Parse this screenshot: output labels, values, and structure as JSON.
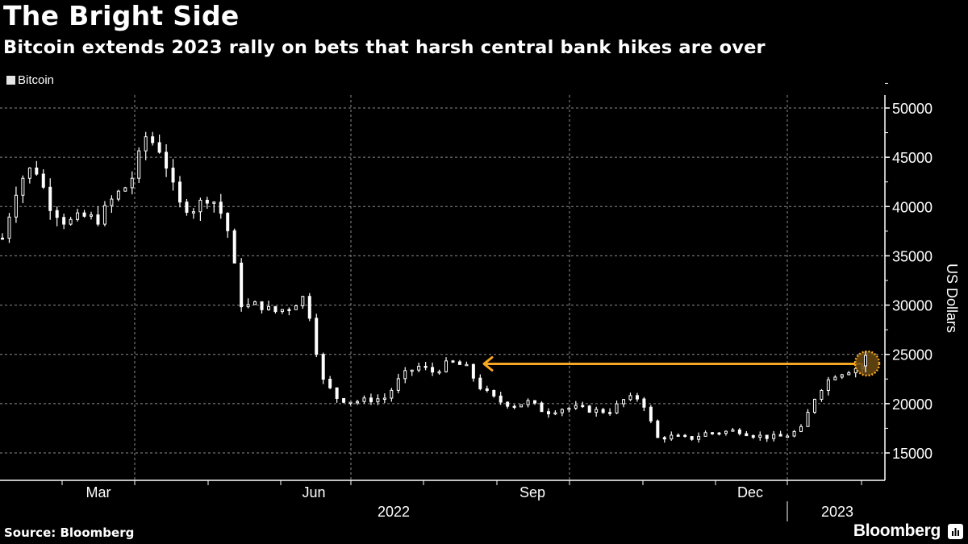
{
  "header": {
    "title": "The Bright Side",
    "subtitle": "Bitcoin extends 2023 rally on bets that harsh central bank hikes are over"
  },
  "legend": {
    "items": [
      {
        "label": "Bitcoin",
        "color": "#e6e6e6"
      }
    ]
  },
  "footer": {
    "source": "Source: Bloomberg",
    "brand": "Bloomberg"
  },
  "colors": {
    "background": "#000000",
    "series": "#ffffff",
    "annotation": "#f5a623",
    "grid": "#8c8c8c"
  },
  "chart_data": {
    "type": "line",
    "subtype": "candlestick",
    "title": "The Bright Side",
    "subtitle": "Bitcoin extends 2023 rally on bets that harsh central bank hikes are over",
    "xlabel": "",
    "ylabel": "US Dollars",
    "y_axis_position": "right",
    "ylim": [
      13000,
      52000
    ],
    "y_ticks": [
      15000,
      20000,
      25000,
      30000,
      35000,
      40000,
      45000,
      50000
    ],
    "x_tick_labels": [
      "Mar",
      "Jun",
      "Sep",
      "Dec"
    ],
    "x_year_labels": [
      "2022",
      "2023"
    ],
    "grid": true,
    "legend": [
      "Bitcoin"
    ],
    "legend_position": "top-left",
    "series": [
      {
        "name": "Bitcoin",
        "x": [
          "2022-01-24",
          "2022-02-01",
          "2022-02-08",
          "2022-02-15",
          "2022-02-22",
          "2022-03-01",
          "2022-03-08",
          "2022-03-15",
          "2022-03-22",
          "2022-03-29",
          "2022-04-05",
          "2022-04-12",
          "2022-04-19",
          "2022-04-26",
          "2022-05-03",
          "2022-05-10",
          "2022-05-17",
          "2022-05-24",
          "2022-05-31",
          "2022-06-07",
          "2022-06-14",
          "2022-06-21",
          "2022-06-28",
          "2022-07-05",
          "2022-07-12",
          "2022-07-19",
          "2022-07-26",
          "2022-08-02",
          "2022-08-09",
          "2022-08-16",
          "2022-08-23",
          "2022-08-30",
          "2022-09-06",
          "2022-09-13",
          "2022-09-20",
          "2022-09-27",
          "2022-10-04",
          "2022-10-11",
          "2022-10-18",
          "2022-10-25",
          "2022-11-01",
          "2022-11-08",
          "2022-11-15",
          "2022-11-22",
          "2022-11-29",
          "2022-12-06",
          "2022-12-13",
          "2022-12-20",
          "2022-12-27",
          "2023-01-03",
          "2023-01-10",
          "2023-01-17",
          "2023-01-24",
          "2023-01-31",
          "2023-02-07"
        ],
        "values": [
          36800,
          42500,
          44200,
          40100,
          38300,
          39000,
          38700,
          41000,
          42400,
          47200,
          45600,
          40200,
          39800,
          41200,
          38500,
          29800,
          30100,
          29300,
          29800,
          31000,
          22500,
          20500,
          20200,
          20400,
          20600,
          22800,
          23800,
          23200,
          24200,
          23800,
          21500,
          20300,
          19800,
          20200,
          19100,
          19500,
          19600,
          19300,
          19200,
          20500,
          20600,
          16500,
          16700,
          16400,
          17000,
          17100,
          17300,
          16800,
          16600,
          16700,
          17400,
          21100,
          22900,
          23400,
          23900
        ]
      }
    ],
    "annotations": [
      {
        "type": "arrow",
        "from_value": 24000,
        "direction": "left",
        "to_approx": "2022-08-12",
        "color": "#f5a623"
      },
      {
        "type": "circle",
        "at": "latest",
        "value": 24000,
        "color": "#f5a623"
      }
    ]
  }
}
